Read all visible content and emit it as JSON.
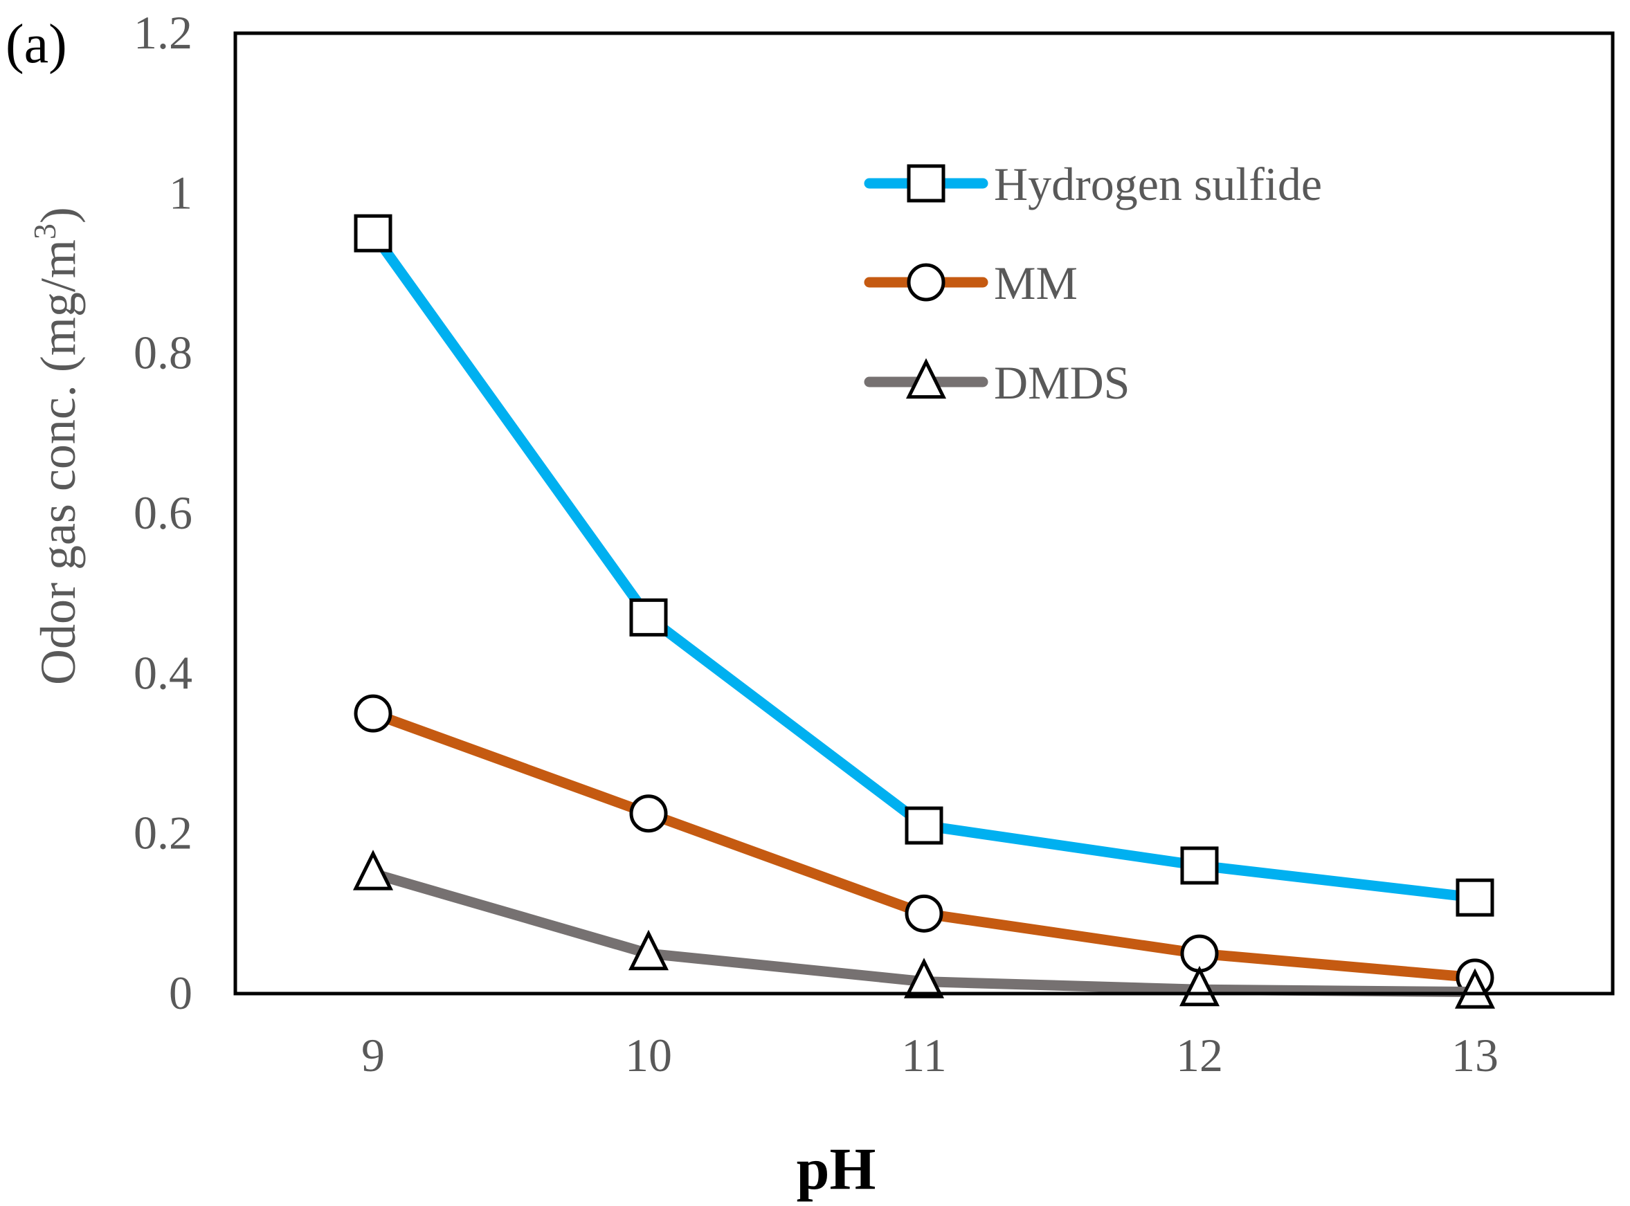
{
  "panel_label": "(a)",
  "chart_data": {
    "type": "line",
    "xlabel": "pH",
    "ylabel": "Odor gas conc. (mg/m",
    "ylabel_superscript": "3",
    "ylabel_close": ")",
    "x": [
      9,
      10,
      11,
      12,
      13
    ],
    "x_tick_labels": [
      "9",
      "10",
      "11",
      "12",
      "13"
    ],
    "ylim": [
      0,
      1.2
    ],
    "y_ticks": [
      0,
      0.2,
      0.4,
      0.6,
      0.8,
      1,
      1.2
    ],
    "y_tick_labels": [
      "0",
      "0.2",
      "0.4",
      "0.6",
      "0.8",
      "1",
      "1.2"
    ],
    "grid": false,
    "legend_position": "top-right",
    "series": [
      {
        "name": "Hydrogen sulfide",
        "color": "#00b0f0",
        "marker": "square",
        "values": [
          0.95,
          0.47,
          0.21,
          0.16,
          0.12
        ]
      },
      {
        "name": "MM",
        "color": "#c55a11",
        "marker": "circle",
        "values": [
          0.35,
          0.225,
          0.1,
          0.05,
          0.02
        ]
      },
      {
        "name": "DMDS",
        "color": "#767171",
        "marker": "triangle",
        "values": [
          0.15,
          0.05,
          0.015,
          0.005,
          0.002
        ]
      }
    ]
  }
}
